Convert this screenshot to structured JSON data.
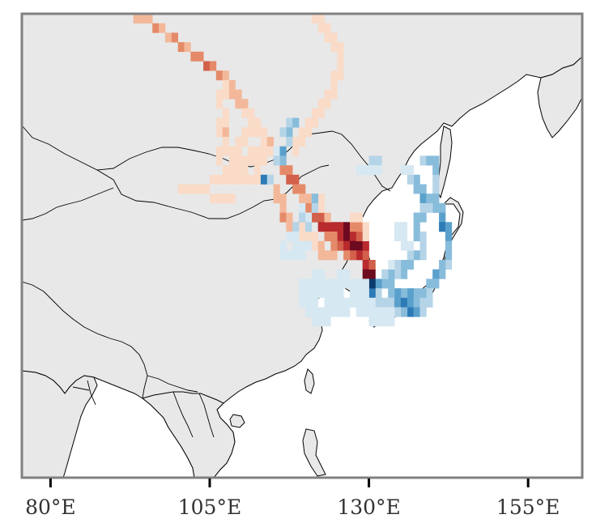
{
  "map": {
    "projection": "plate-carree",
    "extent": {
      "lon": [
        75.5,
        163.5
      ],
      "lat": [
        10,
        59
      ]
    },
    "colors": {
      "land": "#e8e8e8",
      "sea": "#ffffff",
      "border": "#000000",
      "frame": "#808080",
      "positive_scale": [
        "#f9dbc8",
        "#f3b89a",
        "#e58a68",
        "#d2604a",
        "#b82a2d",
        "#6e0a1f"
      ],
      "negative_scale": [
        "#d6e8f2",
        "#b5d4e8",
        "#88bcdb",
        "#5aa0cc",
        "#2d7bb6",
        "#0b3a6e"
      ]
    },
    "x_axis": {
      "ticks": [
        {
          "lon": 80,
          "label": "80°E"
        },
        {
          "lon": 105,
          "label": "105°E"
        },
        {
          "lon": 130,
          "label": "130°E"
        },
        {
          "lon": 155,
          "label": "155°E"
        }
      ]
    }
  },
  "chart_data": {
    "type": "heatmap",
    "description_free": true,
    "grid_resolution_deg": 1,
    "cells_positive": [
      [
        91,
        59,
        2
      ],
      [
        92,
        59,
        2
      ],
      [
        93,
        59,
        2
      ],
      [
        94,
        59,
        2
      ],
      [
        93,
        58,
        2
      ],
      [
        94,
        58,
        2
      ],
      [
        95,
        58,
        2
      ],
      [
        96,
        57,
        3
      ],
      [
        97,
        57,
        2
      ],
      [
        98,
        56,
        2
      ],
      [
        99,
        56,
        3
      ],
      [
        100,
        55,
        3
      ],
      [
        101,
        55,
        2
      ],
      [
        102,
        54,
        3
      ],
      [
        103,
        54,
        3
      ],
      [
        104,
        53,
        4
      ],
      [
        105,
        53,
        3
      ],
      [
        106,
        52,
        3
      ],
      [
        107,
        52,
        2
      ],
      [
        108,
        51,
        2
      ],
      [
        108,
        50,
        2
      ],
      [
        109,
        50,
        2
      ],
      [
        109,
        49,
        2
      ],
      [
        110,
        49,
        2
      ],
      [
        110,
        48,
        1
      ],
      [
        111,
        48,
        1
      ],
      [
        111,
        47,
        1
      ],
      [
        112,
        47,
        1
      ],
      [
        112,
        46,
        1
      ],
      [
        113,
        46,
        1
      ],
      [
        113,
        45,
        1
      ],
      [
        114,
        45,
        2
      ],
      [
        114,
        44,
        2
      ],
      [
        115,
        44,
        2
      ],
      [
        115,
        43,
        2
      ],
      [
        116,
        43,
        2
      ],
      [
        116,
        42,
        3
      ],
      [
        117,
        42,
        3
      ],
      [
        117,
        41,
        4
      ],
      [
        118,
        41,
        4
      ],
      [
        118,
        40,
        3
      ],
      [
        119,
        40,
        3
      ],
      [
        119,
        39,
        2
      ],
      [
        120,
        39,
        2
      ],
      [
        120,
        38,
        3
      ],
      [
        121,
        38,
        3
      ],
      [
        121,
        37,
        4
      ],
      [
        122,
        37,
        4
      ],
      [
        122,
        36,
        5
      ],
      [
        123,
        36,
        5
      ],
      [
        124,
        36,
        5
      ],
      [
        125,
        36,
        5
      ],
      [
        126,
        36,
        6
      ],
      [
        125,
        35,
        5
      ],
      [
        126,
        35,
        6
      ],
      [
        125,
        34,
        4
      ],
      [
        126,
        34,
        5
      ],
      [
        107,
        51,
        1
      ],
      [
        107,
        50,
        1
      ],
      [
        106,
        50,
        1
      ],
      [
        106,
        49,
        1
      ],
      [
        107,
        48,
        1
      ],
      [
        107,
        47,
        1
      ],
      [
        106,
        47,
        1
      ],
      [
        106,
        46,
        1
      ],
      [
        107,
        46,
        2
      ],
      [
        107,
        45,
        1
      ],
      [
        107,
        44,
        1
      ],
      [
        106,
        44,
        1
      ],
      [
        106,
        43,
        1
      ],
      [
        107,
        42,
        1
      ],
      [
        108,
        42,
        1
      ],
      [
        109,
        42,
        1
      ],
      [
        110,
        42,
        1
      ],
      [
        108,
        43,
        1
      ],
      [
        109,
        43,
        1
      ],
      [
        110,
        43,
        1
      ],
      [
        111,
        43,
        1
      ],
      [
        112,
        43,
        1
      ],
      [
        113,
        43,
        1
      ],
      [
        108,
        44,
        1
      ],
      [
        109,
        44,
        1
      ],
      [
        109,
        45,
        1
      ],
      [
        110,
        45,
        1
      ],
      [
        110,
        46,
        1
      ],
      [
        111,
        46,
        1
      ],
      [
        111,
        44,
        1
      ],
      [
        112,
        44,
        1
      ],
      [
        113,
        44,
        1
      ],
      [
        114,
        44,
        1
      ],
      [
        112,
        42,
        1
      ],
      [
        112,
        41,
        1
      ],
      [
        111,
        41,
        1
      ],
      [
        110,
        41,
        1
      ],
      [
        109,
        41,
        1
      ],
      [
        108,
        41,
        1
      ],
      [
        107,
        41,
        1
      ],
      [
        106,
        41,
        1
      ],
      [
        105,
        41,
        1
      ],
      [
        104,
        40,
        1
      ],
      [
        103,
        40,
        1
      ],
      [
        102,
        40,
        1
      ],
      [
        101,
        40,
        1
      ],
      [
        100,
        40,
        1
      ],
      [
        105,
        39,
        1
      ],
      [
        106,
        39,
        1
      ],
      [
        107,
        39,
        1
      ],
      [
        108,
        39,
        1
      ],
      [
        118,
        44,
        1
      ],
      [
        118,
        45,
        1
      ],
      [
        119,
        45,
        1
      ],
      [
        119,
        46,
        1
      ],
      [
        120,
        46,
        1
      ],
      [
        120,
        47,
        1
      ],
      [
        121,
        47,
        1
      ],
      [
        121,
        48,
        1
      ],
      [
        122,
        48,
        1
      ],
      [
        122,
        49,
        1
      ],
      [
        123,
        49,
        1
      ],
      [
        123,
        50,
        1
      ],
      [
        124,
        50,
        1
      ],
      [
        124,
        51,
        1
      ],
      [
        124,
        52,
        1
      ],
      [
        125,
        52,
        1
      ],
      [
        125,
        53,
        1
      ],
      [
        125,
        54,
        1
      ],
      [
        125,
        55,
        1
      ],
      [
        124,
        55,
        1
      ],
      [
        124,
        56,
        1
      ],
      [
        123,
        56,
        1
      ],
      [
        123,
        57,
        1
      ],
      [
        122,
        57,
        1
      ],
      [
        122,
        58,
        1
      ],
      [
        121,
        58,
        1
      ],
      [
        115,
        40,
        2
      ],
      [
        115,
        39,
        2
      ],
      [
        116,
        39,
        2
      ],
      [
        116,
        38,
        2
      ],
      [
        116,
        37,
        3
      ],
      [
        117,
        37,
        2
      ],
      [
        117,
        36,
        2
      ],
      [
        118,
        36,
        2
      ],
      [
        118,
        35,
        1
      ],
      [
        118,
        34,
        1
      ],
      [
        119,
        37,
        1
      ],
      [
        119,
        36,
        1
      ],
      [
        119,
        35,
        1
      ],
      [
        120,
        36,
        1
      ],
      [
        120,
        35,
        1
      ],
      [
        121,
        35,
        1
      ],
      [
        121,
        34,
        1
      ],
      [
        122,
        34,
        2
      ],
      [
        122,
        33,
        2
      ],
      [
        123,
        33,
        2
      ],
      [
        124,
        33,
        2
      ],
      [
        123,
        35,
        3
      ],
      [
        124,
        35,
        3
      ],
      [
        124,
        34,
        3
      ],
      [
        127,
        35,
        5
      ],
      [
        127,
        34,
        6
      ],
      [
        128,
        34,
        6
      ],
      [
        128,
        33,
        5
      ],
      [
        129,
        33,
        4
      ],
      [
        129,
        32,
        5
      ],
      [
        129,
        34,
        5
      ],
      [
        128,
        35,
        4
      ],
      [
        127,
        33,
        4
      ],
      [
        126,
        33,
        3
      ],
      [
        129,
        31,
        6
      ],
      [
        130,
        31,
        6
      ],
      [
        130,
        32,
        4
      ],
      [
        128,
        36,
        3
      ],
      [
        127,
        36,
        3
      ],
      [
        128,
        37,
        1
      ],
      [
        127,
        37,
        1
      ],
      [
        129,
        35,
        1
      ],
      [
        129,
        36,
        1
      ],
      [
        123,
        37,
        2
      ],
      [
        122,
        38,
        1
      ],
      [
        121,
        39,
        1
      ],
      [
        122,
        39,
        1
      ]
    ],
    "cells_negative": [
      [
        117,
        47,
        2
      ],
      [
        118,
        47,
        3
      ],
      [
        117,
        46,
        3
      ],
      [
        116,
        46,
        2
      ],
      [
        117,
        45,
        2
      ],
      [
        115,
        44,
        1
      ],
      [
        116,
        44,
        4
      ],
      [
        116,
        43,
        3
      ],
      [
        115,
        43,
        2
      ],
      [
        113,
        41,
        5
      ],
      [
        114,
        41,
        2
      ],
      [
        121,
        39,
        3
      ],
      [
        121,
        38,
        2
      ],
      [
        120,
        37,
        1
      ],
      [
        119,
        38,
        1
      ],
      [
        119,
        37,
        2
      ],
      [
        120,
        36,
        2
      ],
      [
        118,
        36,
        2
      ],
      [
        118,
        35,
        1
      ],
      [
        117,
        35,
        1
      ],
      [
        116,
        34,
        1
      ],
      [
        116,
        33,
        1
      ],
      [
        117,
        33,
        1
      ],
      [
        118,
        33,
        1
      ],
      [
        119,
        33,
        1
      ],
      [
        119,
        34,
        1
      ],
      [
        120,
        34,
        1
      ],
      [
        118,
        34,
        1
      ],
      [
        131,
        43,
        2
      ],
      [
        130,
        43,
        2
      ],
      [
        130,
        42,
        1
      ],
      [
        131,
        42,
        1
      ],
      [
        128,
        42,
        1
      ],
      [
        129,
        42,
        1
      ],
      [
        138,
        43,
        2
      ],
      [
        139,
        43,
        3
      ],
      [
        140,
        43,
        3
      ],
      [
        140,
        42,
        3
      ],
      [
        140,
        41,
        2
      ],
      [
        140,
        40,
        2
      ],
      [
        140,
        39,
        3
      ],
      [
        140,
        38,
        3
      ],
      [
        141,
        38,
        3
      ],
      [
        141,
        37,
        4
      ],
      [
        141,
        36,
        5
      ],
      [
        142,
        36,
        4
      ],
      [
        142,
        35,
        4
      ],
      [
        142,
        34,
        3
      ],
      [
        142,
        33,
        3
      ],
      [
        142,
        32,
        2
      ],
      [
        141,
        32,
        3
      ],
      [
        141,
        31,
        3
      ],
      [
        140,
        31,
        4
      ],
      [
        140,
        30,
        3
      ],
      [
        139,
        30,
        3
      ],
      [
        139,
        29,
        2
      ],
      [
        138,
        29,
        3
      ],
      [
        137,
        29,
        3
      ],
      [
        136,
        29,
        4
      ],
      [
        135,
        29,
        3
      ],
      [
        134,
        29,
        4
      ],
      [
        133,
        29,
        3
      ],
      [
        133,
        30,
        3
      ],
      [
        132,
        30,
        3
      ],
      [
        131,
        30,
        4
      ],
      [
        131,
        29,
        2
      ],
      [
        130,
        29,
        5
      ],
      [
        130,
        30,
        6
      ],
      [
        131,
        28,
        2
      ],
      [
        132,
        28,
        2
      ],
      [
        133,
        28,
        2
      ],
      [
        134,
        28,
        4
      ],
      [
        135,
        28,
        5
      ],
      [
        136,
        28,
        4
      ],
      [
        137,
        28,
        3
      ],
      [
        138,
        28,
        2
      ],
      [
        139,
        28,
        2
      ],
      [
        136,
        27,
        5
      ],
      [
        137,
        27,
        4
      ],
      [
        138,
        27,
        2
      ],
      [
        135,
        27,
        3
      ],
      [
        134,
        27,
        2
      ],
      [
        133,
        27,
        1
      ],
      [
        132,
        27,
        1
      ],
      [
        131,
        27,
        1
      ],
      [
        137,
        40,
        3
      ],
      [
        137,
        41,
        3
      ],
      [
        136,
        41,
        2
      ],
      [
        136,
        42,
        1
      ],
      [
        135,
        42,
        1
      ],
      [
        138,
        40,
        3
      ],
      [
        138,
        39,
        4
      ],
      [
        139,
        39,
        3
      ],
      [
        139,
        38,
        2
      ],
      [
        138,
        38,
        2
      ],
      [
        138,
        37,
        3
      ],
      [
        137,
        37,
        3
      ],
      [
        137,
        36,
        3
      ],
      [
        137,
        35,
        3
      ],
      [
        138,
        35,
        2
      ],
      [
        138,
        34,
        2
      ],
      [
        138,
        33,
        2
      ],
      [
        137,
        33,
        3
      ],
      [
        136,
        33,
        2
      ],
      [
        136,
        32,
        3
      ],
      [
        135,
        32,
        3
      ],
      [
        135,
        31,
        3
      ],
      [
        134,
        31,
        2
      ],
      [
        133,
        31,
        3
      ],
      [
        132,
        31,
        2
      ],
      [
        134,
        32,
        2
      ],
      [
        133,
        32,
        1
      ],
      [
        136,
        34,
        1
      ],
      [
        135,
        34,
        1
      ],
      [
        135,
        35,
        1
      ],
      [
        134,
        35,
        1
      ],
      [
        134,
        36,
        1
      ],
      [
        135,
        36,
        1
      ],
      [
        121,
        31,
        1
      ],
      [
        121,
        30,
        1
      ],
      [
        121,
        29,
        1
      ],
      [
        122,
        29,
        1
      ],
      [
        122,
        30,
        1
      ],
      [
        122,
        31,
        1
      ],
      [
        121,
        28,
        1
      ],
      [
        120,
        28,
        1
      ],
      [
        120,
        29,
        1
      ],
      [
        120,
        30,
        1
      ],
      [
        119,
        30,
        1
      ],
      [
        119,
        29,
        1
      ],
      [
        119,
        28,
        1
      ],
      [
        120,
        27,
        1
      ],
      [
        121,
        27,
        1
      ],
      [
        122,
        27,
        1
      ],
      [
        122,
        26,
        1
      ],
      [
        121,
        26,
        1
      ],
      [
        123,
        26,
        1
      ],
      [
        123,
        27,
        1
      ],
      [
        123,
        28,
        1
      ],
      [
        123,
        29,
        1
      ],
      [
        123,
        30,
        1
      ],
      [
        124,
        30,
        1
      ],
      [
        124,
        29,
        1
      ],
      [
        125,
        29,
        1
      ],
      [
        125,
        30,
        1
      ],
      [
        125,
        31,
        1
      ],
      [
        126,
        31,
        1
      ],
      [
        126,
        30,
        1
      ],
      [
        127,
        30,
        1
      ],
      [
        128,
        30,
        1
      ],
      [
        129,
        30,
        1
      ],
      [
        128,
        29,
        1
      ],
      [
        127,
        29,
        1
      ],
      [
        127,
        28,
        1
      ],
      [
        126,
        28,
        1
      ],
      [
        126,
        27,
        1
      ],
      [
        125,
        27,
        1
      ],
      [
        125,
        28,
        1
      ],
      [
        124,
        28,
        1
      ],
      [
        124,
        27,
        1
      ],
      [
        129,
        29,
        1
      ],
      [
        129,
        28,
        1
      ],
      [
        130,
        28,
        1
      ],
      [
        128,
        28,
        1
      ],
      [
        130,
        27,
        1
      ],
      [
        129,
        27,
        1
      ],
      [
        128,
        27,
        1
      ],
      [
        130,
        26,
        1
      ],
      [
        131,
        26,
        1
      ],
      [
        132,
        26,
        1
      ],
      [
        133,
        26,
        1
      ]
    ]
  }
}
